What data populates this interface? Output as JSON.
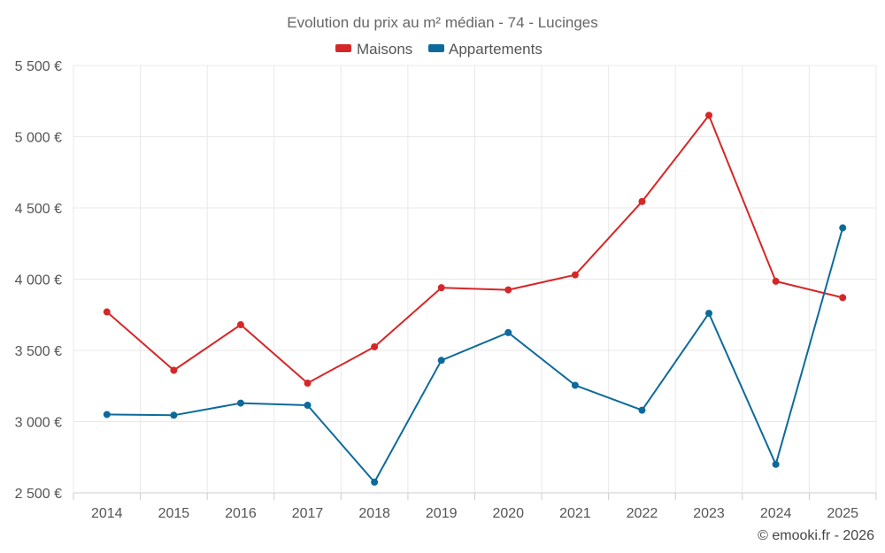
{
  "chart_data": {
    "type": "line",
    "title": "Evolution du prix au m² médian - 74 - Lucinges",
    "categories": [
      "2014",
      "2015",
      "2016",
      "2017",
      "2018",
      "2019",
      "2020",
      "2021",
      "2022",
      "2023",
      "2024",
      "2025"
    ],
    "series": [
      {
        "name": "Maisons",
        "color": "#d62728",
        "values": [
          3770,
          3360,
          3680,
          3270,
          3525,
          3940,
          3925,
          4030,
          4545,
          5150,
          3985,
          3870
        ]
      },
      {
        "name": "Appartements",
        "color": "#0e6a9b",
        "values": [
          3050,
          3045,
          3130,
          3115,
          2575,
          3430,
          3625,
          3255,
          3080,
          3760,
          2700,
          4360
        ]
      }
    ],
    "ylim": [
      2500,
      5500
    ],
    "yticks": [
      2500,
      3000,
      3500,
      4000,
      4500,
      5000,
      5500
    ],
    "ytick_labels": [
      "2 500 €",
      "3 000 €",
      "3 500 €",
      "4 000 €",
      "4 500 €",
      "5 000 €",
      "5 500 €"
    ],
    "xlabel": "",
    "ylabel": "",
    "grid": true,
    "legend_position": "top-center"
  },
  "credit": "© emooki.fr - 2026"
}
